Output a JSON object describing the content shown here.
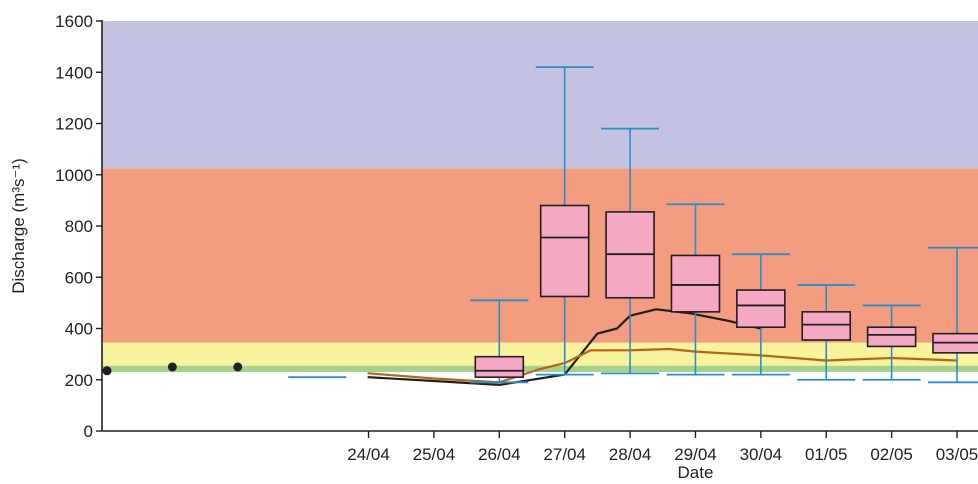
{
  "chart_data": {
    "type": "box",
    "xlabel": "Date",
    "ylabel": "Discharge (m³s⁻¹)",
    "ylim": [
      0,
      1600
    ],
    "y_ticks": [
      0,
      200,
      400,
      600,
      800,
      1000,
      1200,
      1400,
      1600
    ],
    "x_ticks": [
      "24/04",
      "25/04",
      "26/04",
      "27/04",
      "28/04",
      "29/04",
      "30/04",
      "01/05",
      "02/05",
      "03/05"
    ],
    "x_range": [
      "20/04",
      "03/05"
    ],
    "threshold_bands": [
      {
        "from": 230,
        "to": 255,
        "color": "#a9d18e"
      },
      {
        "from": 255,
        "to": 345,
        "color": "#f9f39d"
      },
      {
        "from": 345,
        "to": 1025,
        "color": "#f39c80"
      },
      {
        "from": 1025,
        "to": 1600,
        "color": "#c3c3e1"
      }
    ],
    "observed_points": [
      {
        "date": "20/04",
        "value": 235
      },
      {
        "date": "21/04",
        "value": 250
      },
      {
        "date": "22/04",
        "value": 250
      }
    ],
    "boxplots": [
      {
        "date": "26/04",
        "min": 190,
        "q1": 210,
        "median": 235,
        "q3": 290,
        "max": 510
      },
      {
        "date": "27/04",
        "min": 220,
        "q1": 525,
        "median": 755,
        "q3": 880,
        "max": 1420
      },
      {
        "date": "28/04",
        "min": 225,
        "q1": 520,
        "median": 690,
        "q3": 855,
        "max": 1180
      },
      {
        "date": "29/04",
        "min": 220,
        "q1": 465,
        "median": 570,
        "q3": 685,
        "max": 885
      },
      {
        "date": "30/04",
        "min": 220,
        "q1": 405,
        "median": 490,
        "q3": 550,
        "max": 690
      },
      {
        "date": "01/05",
        "min": 200,
        "q1": 355,
        "median": 415,
        "q3": 465,
        "max": 570
      },
      {
        "date": "02/05",
        "min": 200,
        "q1": 330,
        "median": 375,
        "q3": 405,
        "max": 490
      },
      {
        "date": "03/05",
        "min": 190,
        "q1": 305,
        "median": 345,
        "q3": 380,
        "max": 715
      }
    ],
    "extra_whisker_caps": [
      {
        "date": "23/04",
        "value": 210
      }
    ],
    "series": [
      {
        "color": "#231f20",
        "points": [
          {
            "date": "24/04",
            "value": 210
          },
          {
            "date": "25/04",
            "value": 195
          },
          {
            "date": "26/04",
            "value": 180
          },
          {
            "date": "27/04",
            "value": 220
          },
          {
            "date": "27.5/04",
            "value": 380
          },
          {
            "date": "27.8/04",
            "value": 400
          },
          {
            "date": "28/04",
            "value": 450
          },
          {
            "date": "28.4/04",
            "value": 475
          },
          {
            "date": "28.9/04",
            "value": 460
          },
          {
            "date": "29.5/04",
            "value": 430
          },
          {
            "date": "30/04",
            "value": 400
          }
        ]
      },
      {
        "color": "#b5651d",
        "points": [
          {
            "date": "24/04",
            "value": 225
          },
          {
            "date": "25/04",
            "value": 205
          },
          {
            "date": "26/04",
            "value": 190
          },
          {
            "date": "26.6/04",
            "value": 240
          },
          {
            "date": "27/04",
            "value": 265
          },
          {
            "date": "27.4/04",
            "value": 315
          },
          {
            "date": "28/04",
            "value": 315
          },
          {
            "date": "28.6/04",
            "value": 320
          },
          {
            "date": "29/04",
            "value": 310
          },
          {
            "date": "30/04",
            "value": 295
          },
          {
            "date": "01/05",
            "value": 275
          },
          {
            "date": "02/05",
            "value": 285
          },
          {
            "date": "03/05",
            "value": 275
          }
        ]
      }
    ],
    "colors": {
      "box_fill": "#f5a8c4",
      "box_stroke": "#231f20",
      "whisker": "#2a8fc9",
      "axis": "#231f20"
    }
  }
}
